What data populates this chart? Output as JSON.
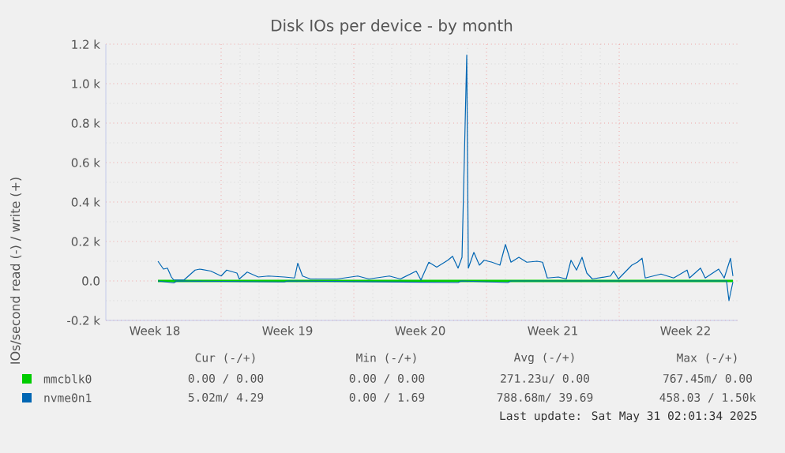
{
  "chart_data": {
    "type": "line",
    "title": "Disk IOs per device - by month",
    "ylabel": "IOs/second read (-) / write (+)",
    "xlim": [
      "2025-04-27T22:00",
      "2025-05-31T06:00"
    ],
    "xticks": [
      {
        "value": "2025-04-30T12:00",
        "label": "Week 18"
      },
      {
        "value": "2025-05-04T00:00",
        "label": null
      },
      {
        "value": "2025-05-07T12:00",
        "label": "Week 19"
      },
      {
        "value": "2025-05-11T00:00",
        "label": null
      },
      {
        "value": "2025-05-14T12:00",
        "label": "Week 20"
      },
      {
        "value": "2025-05-18T00:00",
        "label": null
      },
      {
        "value": "2025-05-21T12:00",
        "label": "Week 21"
      },
      {
        "value": "2025-05-25T00:00",
        "label": null
      },
      {
        "value": "2025-05-28T12:00",
        "label": "Week 22"
      }
    ],
    "ylim": [
      -200,
      1200
    ],
    "yticks": [
      {
        "value": -200,
        "label": "-0.2 k"
      },
      {
        "value": 0,
        "label": "0.0"
      },
      {
        "value": 200,
        "label": "0.2 k"
      },
      {
        "value": 400,
        "label": "0.4 k"
      },
      {
        "value": 600,
        "label": "0.6 k"
      },
      {
        "value": 800,
        "label": "0.8 k"
      },
      {
        "value": 1000,
        "label": "1.0 k"
      },
      {
        "value": 1200,
        "label": "1.2 k"
      }
    ],
    "grid": true,
    "legend": "bottom",
    "marker": "none",
    "line_style": "solid",
    "series": [
      {
        "name": "mmcblk0",
        "color": "#00cc00",
        "x": [
          "2025-04-30T16:00",
          "2025-05-31T00:00"
        ],
        "values": [
          0,
          0
        ]
      },
      {
        "name": "nvme0n1",
        "color": "#0066b3",
        "x": [
          "2025-04-30T16:00",
          "2025-04-30T23:00",
          "2025-05-01T04:00",
          "2025-05-01T09:00",
          "2025-05-01T12:00",
          "2025-05-02T01:00",
          "2025-05-02T15:00",
          "2025-05-02T21:00",
          "2025-05-03T11:00",
          "2025-05-04T00:00",
          "2025-05-04T07:00",
          "2025-05-04T20:00",
          "2025-05-04T23:00",
          "2025-05-05T09:00",
          "2025-05-05T23:00",
          "2025-05-06T12:00",
          "2025-05-07T08:00",
          "2025-05-07T21:00",
          "2025-05-08T01:00",
          "2025-05-08T07:00",
          "2025-05-08T17:00",
          "2025-05-10T03:00",
          "2025-05-11T05:00",
          "2025-05-11T19:00",
          "2025-05-12T21:00",
          "2025-05-13T11:00",
          "2025-05-14T07:00",
          "2025-05-14T13:00",
          "2025-05-14T23:00",
          "2025-05-15T09:00",
          "2025-05-15T23:00",
          "2025-05-16T05:00",
          "2025-05-16T12:00",
          "2025-05-16T17:00",
          "2025-05-16T23:00",
          "2025-05-17T01:00",
          "2025-05-17T08:00",
          "2025-05-17T15:00",
          "2025-05-17T21:00",
          "2025-05-18T07:00",
          "2025-05-18T17:00",
          "2025-05-19T00:00",
          "2025-05-19T07:00",
          "2025-05-19T17:00",
          "2025-05-20T03:00",
          "2025-05-20T16:00",
          "2025-05-20T23:00",
          "2025-05-21T05:00",
          "2025-05-21T19:00",
          "2025-05-22T05:00",
          "2025-05-22T11:00",
          "2025-05-22T18:00",
          "2025-05-23T01:00",
          "2025-05-23T07:00",
          "2025-05-23T14:00",
          "2025-05-24T13:00",
          "2025-05-24T17:00",
          "2025-05-24T23:00",
          "2025-05-25T16:00",
          "2025-05-25T23:00",
          "2025-05-26T05:00",
          "2025-05-26T09:00",
          "2025-05-27T05:00",
          "2025-05-27T21:00",
          "2025-05-28T14:00",
          "2025-05-28T17:00",
          "2025-05-29T07:00",
          "2025-05-29T13:00",
          "2025-05-30T06:00",
          "2025-05-30T13:00",
          "2025-05-30T21:00",
          "2025-05-31T00:00"
        ],
        "values": [
          100,
          60,
          65,
          20,
          5,
          5,
          55,
          60,
          50,
          25,
          55,
          40,
          10,
          45,
          20,
          25,
          20,
          15,
          90,
          25,
          10,
          10,
          25,
          10,
          25,
          10,
          50,
          5,
          95,
          70,
          105,
          125,
          65,
          120,
          1145,
          65,
          145,
          80,
          105,
          95,
          80,
          185,
          95,
          120,
          95,
          100,
          95,
          15,
          20,
          10,
          105,
          55,
          120,
          40,
          10,
          25,
          50,
          10,
          80,
          95,
          115,
          15,
          35,
          15,
          55,
          15,
          65,
          15,
          60,
          15,
          115,
          25
        ]
      },
      {
        "color": "#0066b3",
        "x": [
          "2025-04-30T16:00",
          "2025-05-01T12:00",
          "2025-05-01T16:00",
          "2025-05-07T08:00",
          "2025-05-07T12:00",
          "2025-05-16T12:00",
          "2025-05-16T16:00",
          "2025-05-19T03:00",
          "2025-05-19T07:00",
          "2025-05-30T16:00",
          "2025-05-30T19:00",
          "2025-05-31T00:00"
        ],
        "values": [
          0,
          -10,
          0,
          -5,
          0,
          -8,
          0,
          -8,
          0,
          0,
          -100,
          -5
        ]
      }
    ],
    "annotations": [
      "Cur (-/+)",
      "Min (-/+)",
      "Avg (-/+)",
      "Max (-/+)",
      "0.00 /  0.00",
      "0.00 /  0.00",
      "271.23u/  0.00",
      "767.45m/  0.00",
      "5.02m/  4.29",
      "0.00 /  1.69",
      "788.68m/ 39.69",
      "458.03 /  1.50k",
      "Last update: Sat May 31 02:01:34 2025"
    ]
  }
}
